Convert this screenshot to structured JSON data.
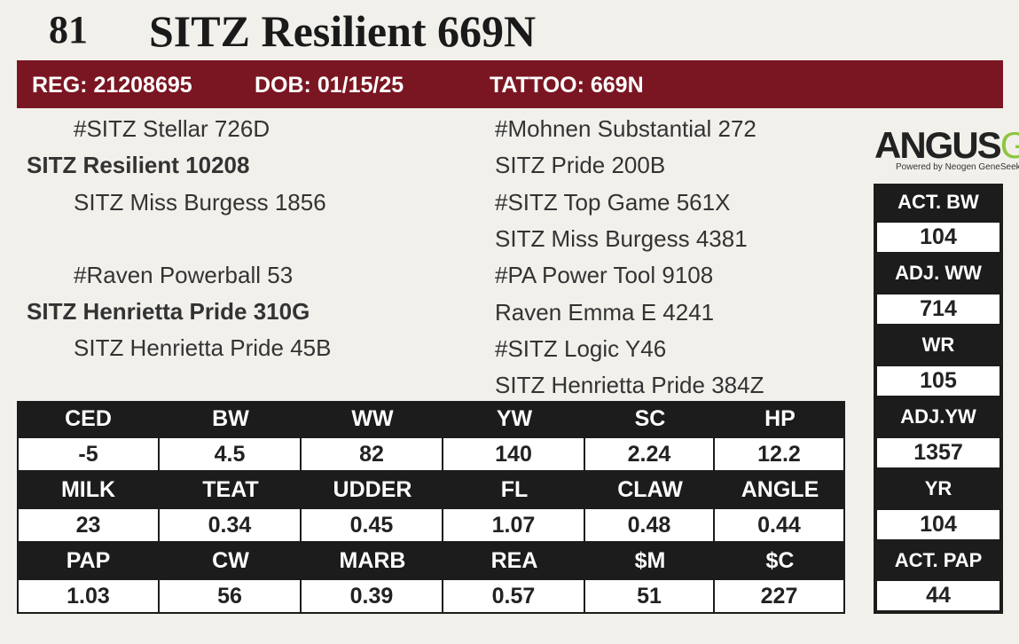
{
  "header": {
    "lot": "81",
    "name": "SITZ Resilient 669N"
  },
  "info_bar": {
    "reg": "REG: 21208695",
    "dob": "DOB: 01/15/25",
    "tattoo": "TATTOO: 669N"
  },
  "pedigree": {
    "sire_sire": "#SITZ Stellar 726D",
    "sire": "SITZ Resilient 10208",
    "sire_dam": "SITZ Miss Burgess 1856",
    "dam_sire": "#Raven Powerball 53",
    "dam": "SITZ Henrietta Pride 310G",
    "dam_dam": "SITZ Henrietta Pride 45B",
    "ancestors": [
      "#Mohnen Substantial 272",
      "SITZ Pride 200B",
      "#SITZ Top Game 561X",
      "SITZ Miss Burgess 4381",
      "#PA Power Tool 9108",
      "Raven Emma E 4241",
      "#SITZ Logic Y46",
      "SITZ Henrietta Pride 384Z"
    ]
  },
  "logo": {
    "angus": "ANGUS",
    "gs": "GS",
    "tagline": "Powered by Neogen GeneSeek"
  },
  "epd": {
    "rows": [
      {
        "headers": [
          "CED",
          "BW",
          "WW",
          "YW",
          "SC",
          "HP"
        ],
        "values": [
          -5,
          4.5,
          82,
          140,
          2.24,
          12.2
        ]
      },
      {
        "headers": [
          "MILK",
          "TEAT",
          "UDDER",
          "FL",
          "CLAW",
          "ANGLE"
        ],
        "values": [
          23,
          0.34,
          0.45,
          1.07,
          0.48,
          0.44
        ]
      },
      {
        "headers": [
          "PAP",
          "CW",
          "MARB",
          "REA",
          "$M",
          "$C"
        ],
        "values": [
          1.03,
          56,
          0.39,
          0.57,
          51,
          227
        ]
      }
    ]
  },
  "performance": [
    {
      "label": "ACT. BW",
      "value": 104
    },
    {
      "label": "ADJ. WW",
      "value": 714
    },
    {
      "label": "WR",
      "value": 105
    },
    {
      "label": "ADJ.YW",
      "value": 1357
    },
    {
      "label": "YR",
      "value": 104
    },
    {
      "label": "ACT. PAP",
      "value": 44
    }
  ]
}
